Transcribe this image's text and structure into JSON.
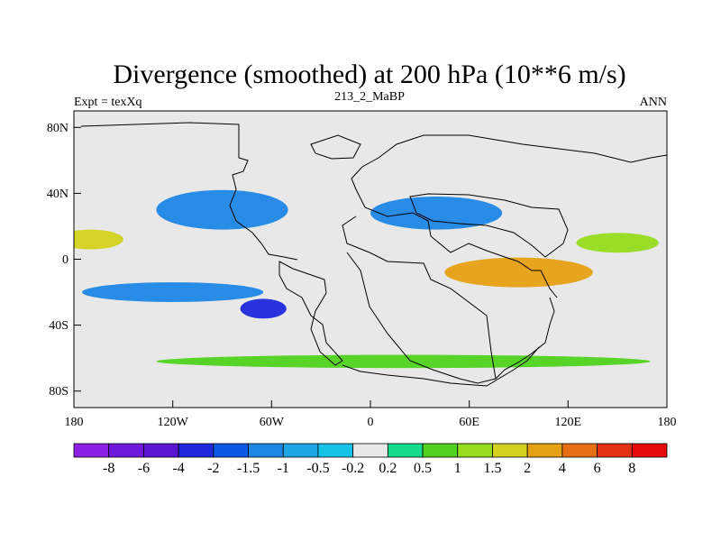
{
  "chart_data": {
    "type": "heatmap",
    "title": "Divergence (smoothed) at 200 hPa (10**6 m/s)",
    "left_label": "Expt = texXq",
    "center_label": "213_2_MaBP",
    "right_label": "ANN",
    "xlim": [
      -180,
      180
    ],
    "ylim": [
      -90,
      90
    ],
    "x_ticks": [
      {
        "value": -180,
        "label": "180"
      },
      {
        "value": -120,
        "label": "120W"
      },
      {
        "value": -60,
        "label": "60W"
      },
      {
        "value": 0,
        "label": "0"
      },
      {
        "value": 60,
        "label": "60E"
      },
      {
        "value": 120,
        "label": "120E"
      },
      {
        "value": 180,
        "label": "180"
      }
    ],
    "y_ticks": [
      {
        "value": 80,
        "label": "80N"
      },
      {
        "value": 40,
        "label": "40N"
      },
      {
        "value": 0,
        "label": "0"
      },
      {
        "value": -40,
        "label": "40S"
      },
      {
        "value": -80,
        "label": "80S"
      }
    ],
    "colorbar": {
      "colors": [
        "#8c1ee6",
        "#6e19dc",
        "#5a14d2",
        "#1e28dc",
        "#0a5ae6",
        "#1e87e6",
        "#1ea5e6",
        "#14c3e6",
        "#e8e8e8",
        "#14dc8c",
        "#50d21e",
        "#96dc1e",
        "#d2d21e",
        "#e6a014",
        "#e66e14",
        "#e63214",
        "#e60a0a"
      ],
      "levels": [
        "-8",
        "-6",
        "-4",
        "-2",
        "-1.5",
        "-1",
        "-0.5",
        "-0.2",
        "0.2",
        "0.5",
        "1",
        "1.5",
        "2",
        "4",
        "6",
        "8"
      ]
    },
    "features": [
      {
        "name": "north-atlantic-convergence",
        "lon": -90,
        "lat": 30,
        "rx": 40,
        "ry": 12,
        "value": -1.2
      },
      {
        "name": "asia-convergence",
        "lon": 40,
        "lat": 28,
        "rx": 40,
        "ry": 10,
        "value": -1.2
      },
      {
        "name": "equatorial-pacific-west",
        "lon": -170,
        "lat": 12,
        "rx": 20,
        "ry": 6,
        "value": 1.6
      },
      {
        "name": "indian-ocean-divergence",
        "lon": 90,
        "lat": -8,
        "rx": 45,
        "ry": 9,
        "value": 2.5
      },
      {
        "name": "western-pacific-divergence",
        "lon": 150,
        "lat": 10,
        "rx": 25,
        "ry": 6,
        "value": 1.2
      },
      {
        "name": "southern-ocean-band",
        "lon": 20,
        "lat": -62,
        "rx": 150,
        "ry": 4,
        "value": 0.6
      },
      {
        "name": "south-pacific-convergence",
        "lon": -120,
        "lat": -20,
        "rx": 55,
        "ry": 6,
        "value": -1.5
      },
      {
        "name": "south-america-convergence",
        "lon": -65,
        "lat": -30,
        "rx": 14,
        "ry": 6,
        "value": -3
      }
    ]
  }
}
